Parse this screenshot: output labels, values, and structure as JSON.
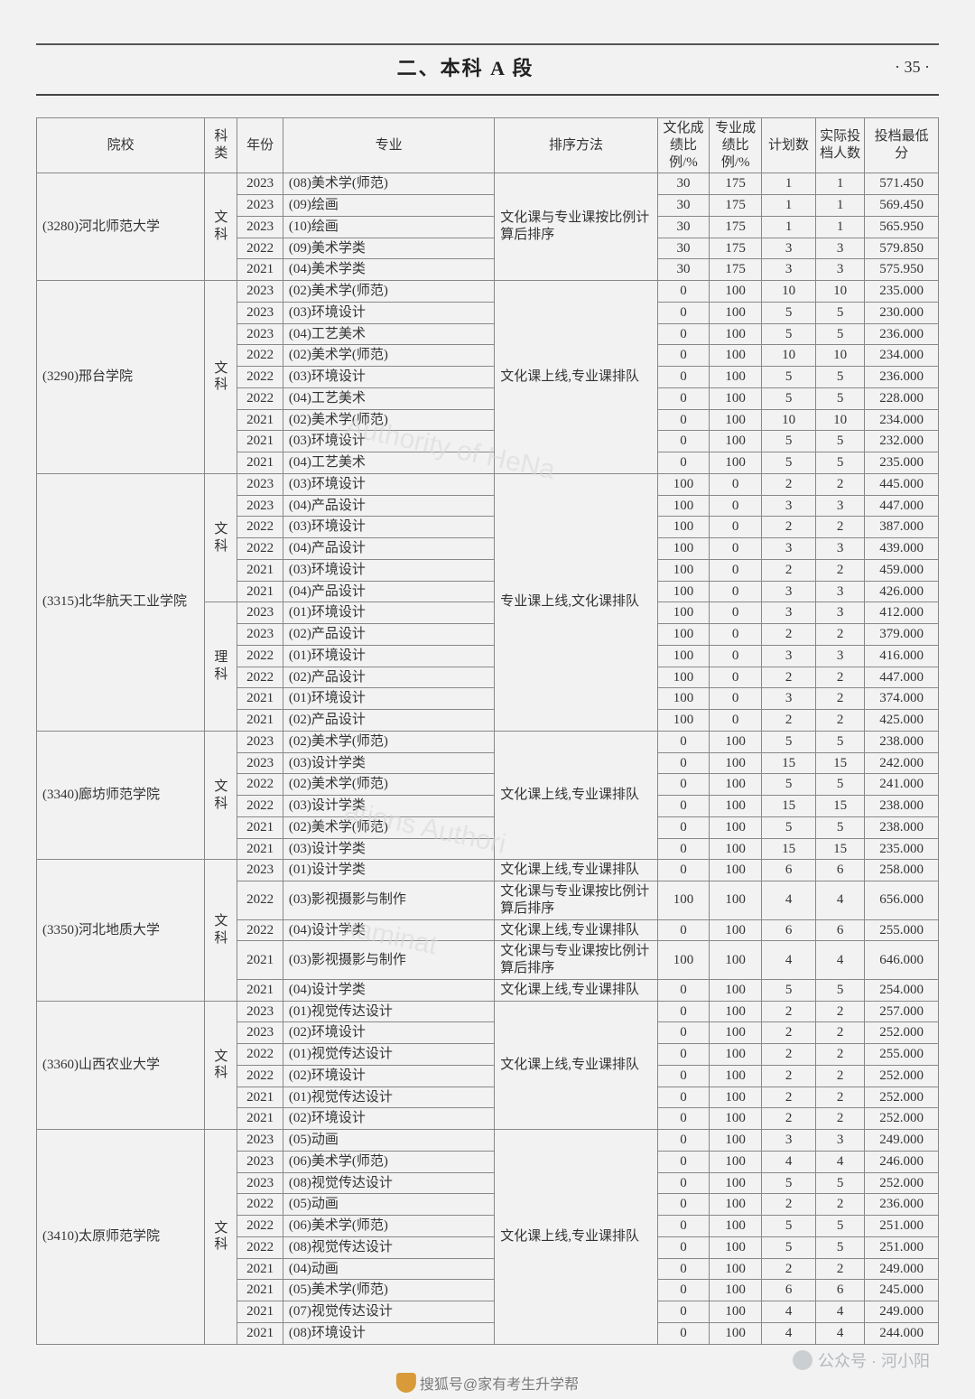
{
  "page": {
    "chapter": "二、本科 A 段",
    "number": "· 35 ·"
  },
  "headers": {
    "school": "院校",
    "subject": "科类",
    "year": "年份",
    "major": "专业",
    "sort": "排序方法",
    "culture": "文化成绩比例/%",
    "prof": "专业成绩比例/%",
    "plan": "计划数",
    "actual": "实际投档人数",
    "score": "投档最低分"
  },
  "watermarks": {
    "wm1": "Authority of HeNa",
    "wm2": "ations Authori",
    "wm3": "xaminat"
  },
  "footer": {
    "channel": "公众号 · 河小阳",
    "sohu": "搜狐号@家有考生升学帮"
  },
  "schools": [
    {
      "name": "(3280)河北师范大学",
      "blocks": [
        {
          "subject": "文科",
          "sort": "文化课与专业课按比例计算后排序",
          "rows": [
            {
              "year": "2023",
              "major": "(08)美术学(师范)",
              "c": "30",
              "p": "175",
              "plan": "1",
              "act": "1",
              "score": "571.450"
            },
            {
              "year": "2023",
              "major": "(09)绘画",
              "c": "30",
              "p": "175",
              "plan": "1",
              "act": "1",
              "score": "569.450"
            },
            {
              "year": "2023",
              "major": "(10)绘画",
              "c": "30",
              "p": "175",
              "plan": "1",
              "act": "1",
              "score": "565.950"
            },
            {
              "year": "2022",
              "major": "(09)美术学类",
              "c": "30",
              "p": "175",
              "plan": "3",
              "act": "3",
              "score": "579.850"
            },
            {
              "year": "2021",
              "major": "(04)美术学类",
              "c": "30",
              "p": "175",
              "plan": "3",
              "act": "3",
              "score": "575.950"
            }
          ]
        }
      ]
    },
    {
      "name": "(3290)邢台学院",
      "blocks": [
        {
          "subject": "文科",
          "sort": "文化课上线,专业课排队",
          "rows": [
            {
              "year": "2023",
              "major": "(02)美术学(师范)",
              "c": "0",
              "p": "100",
              "plan": "10",
              "act": "10",
              "score": "235.000"
            },
            {
              "year": "2023",
              "major": "(03)环境设计",
              "c": "0",
              "p": "100",
              "plan": "5",
              "act": "5",
              "score": "230.000"
            },
            {
              "year": "2023",
              "major": "(04)工艺美术",
              "c": "0",
              "p": "100",
              "plan": "5",
              "act": "5",
              "score": "236.000"
            },
            {
              "year": "2022",
              "major": "(02)美术学(师范)",
              "c": "0",
              "p": "100",
              "plan": "10",
              "act": "10",
              "score": "234.000"
            },
            {
              "year": "2022",
              "major": "(03)环境设计",
              "c": "0",
              "p": "100",
              "plan": "5",
              "act": "5",
              "score": "236.000"
            },
            {
              "year": "2022",
              "major": "(04)工艺美术",
              "c": "0",
              "p": "100",
              "plan": "5",
              "act": "5",
              "score": "228.000"
            },
            {
              "year": "2021",
              "major": "(02)美术学(师范)",
              "c": "0",
              "p": "100",
              "plan": "10",
              "act": "10",
              "score": "234.000"
            },
            {
              "year": "2021",
              "major": "(03)环境设计",
              "c": "0",
              "p": "100",
              "plan": "5",
              "act": "5",
              "score": "232.000"
            },
            {
              "year": "2021",
              "major": "(04)工艺美术",
              "c": "0",
              "p": "100",
              "plan": "5",
              "act": "5",
              "score": "235.000"
            }
          ]
        }
      ]
    },
    {
      "name": "(3315)北华航天工业学院",
      "blocks": [
        {
          "subject": "文科",
          "sort": "专业课上线,文化课排队",
          "rows": [
            {
              "year": "2023",
              "major": "(03)环境设计",
              "c": "100",
              "p": "0",
              "plan": "2",
              "act": "2",
              "score": "445.000"
            },
            {
              "year": "2023",
              "major": "(04)产品设计",
              "c": "100",
              "p": "0",
              "plan": "3",
              "act": "3",
              "score": "447.000"
            },
            {
              "year": "2022",
              "major": "(03)环境设计",
              "c": "100",
              "p": "0",
              "plan": "2",
              "act": "2",
              "score": "387.000"
            },
            {
              "year": "2022",
              "major": "(04)产品设计",
              "c": "100",
              "p": "0",
              "plan": "3",
              "act": "3",
              "score": "439.000"
            },
            {
              "year": "2021",
              "major": "(03)环境设计",
              "c": "100",
              "p": "0",
              "plan": "2",
              "act": "2",
              "score": "459.000"
            },
            {
              "year": "2021",
              "major": "(04)产品设计",
              "c": "100",
              "p": "0",
              "plan": "3",
              "act": "3",
              "score": "426.000"
            }
          ]
        },
        {
          "subject": "理科",
          "sort": "",
          "rows": [
            {
              "year": "2023",
              "major": "(01)环境设计",
              "c": "100",
              "p": "0",
              "plan": "3",
              "act": "3",
              "score": "412.000"
            },
            {
              "year": "2023",
              "major": "(02)产品设计",
              "c": "100",
              "p": "0",
              "plan": "2",
              "act": "2",
              "score": "379.000"
            },
            {
              "year": "2022",
              "major": "(01)环境设计",
              "c": "100",
              "p": "0",
              "plan": "3",
              "act": "3",
              "score": "416.000"
            },
            {
              "year": "2022",
              "major": "(02)产品设计",
              "c": "100",
              "p": "0",
              "plan": "2",
              "act": "2",
              "score": "447.000"
            },
            {
              "year": "2021",
              "major": "(01)环境设计",
              "c": "100",
              "p": "0",
              "plan": "3",
              "act": "2",
              "score": "374.000"
            },
            {
              "year": "2021",
              "major": "(02)产品设计",
              "c": "100",
              "p": "0",
              "plan": "2",
              "act": "2",
              "score": "425.000"
            }
          ]
        }
      ]
    },
    {
      "name": "(3340)廊坊师范学院",
      "blocks": [
        {
          "subject": "文科",
          "sort": "文化课上线,专业课排队",
          "rows": [
            {
              "year": "2023",
              "major": "(02)美术学(师范)",
              "c": "0",
              "p": "100",
              "plan": "5",
              "act": "5",
              "score": "238.000"
            },
            {
              "year": "2023",
              "major": "(03)设计学类",
              "c": "0",
              "p": "100",
              "plan": "15",
              "act": "15",
              "score": "242.000"
            },
            {
              "year": "2022",
              "major": "(02)美术学(师范)",
              "c": "0",
              "p": "100",
              "plan": "5",
              "act": "5",
              "score": "241.000"
            },
            {
              "year": "2022",
              "major": "(03)设计学类",
              "c": "0",
              "p": "100",
              "plan": "15",
              "act": "15",
              "score": "238.000"
            },
            {
              "year": "2021",
              "major": "(02)美术学(师范)",
              "c": "0",
              "p": "100",
              "plan": "5",
              "act": "5",
              "score": "238.000"
            },
            {
              "year": "2021",
              "major": "(03)设计学类",
              "c": "0",
              "p": "100",
              "plan": "15",
              "act": "15",
              "score": "235.000"
            }
          ]
        }
      ]
    },
    {
      "name": "(3350)河北地质大学",
      "blocks": [
        {
          "subject": "文科",
          "sort": "",
          "rows": [
            {
              "year": "2023",
              "major": "(01)设计学类",
              "sort": "文化课上线,专业课排队",
              "c": "0",
              "p": "100",
              "plan": "6",
              "act": "6",
              "score": "258.000"
            },
            {
              "year": "2022",
              "major": "(03)影视摄影与制作",
              "sort": "文化课与专业课按比例计算后排序",
              "c": "100",
              "p": "100",
              "plan": "4",
              "act": "4",
              "score": "656.000"
            },
            {
              "year": "2022",
              "major": "(04)设计学类",
              "sort": "文化课上线,专业课排队",
              "c": "0",
              "p": "100",
              "plan": "6",
              "act": "6",
              "score": "255.000"
            },
            {
              "year": "2021",
              "major": "(03)影视摄影与制作",
              "sort": "文化课与专业课按比例计算后排序",
              "c": "100",
              "p": "100",
              "plan": "4",
              "act": "4",
              "score": "646.000"
            },
            {
              "year": "2021",
              "major": "(04)设计学类",
              "sort": "文化课上线,专业课排队",
              "c": "0",
              "p": "100",
              "plan": "5",
              "act": "5",
              "score": "254.000"
            }
          ]
        }
      ]
    },
    {
      "name": "(3360)山西农业大学",
      "blocks": [
        {
          "subject": "文科",
          "sort": "文化课上线,专业课排队",
          "rows": [
            {
              "year": "2023",
              "major": "(01)视觉传达设计",
              "c": "0",
              "p": "100",
              "plan": "2",
              "act": "2",
              "score": "257.000"
            },
            {
              "year": "2023",
              "major": "(02)环境设计",
              "c": "0",
              "p": "100",
              "plan": "2",
              "act": "2",
              "score": "252.000"
            },
            {
              "year": "2022",
              "major": "(01)视觉传达设计",
              "c": "0",
              "p": "100",
              "plan": "2",
              "act": "2",
              "score": "255.000"
            },
            {
              "year": "2022",
              "major": "(02)环境设计",
              "c": "0",
              "p": "100",
              "plan": "2",
              "act": "2",
              "score": "252.000"
            },
            {
              "year": "2021",
              "major": "(01)视觉传达设计",
              "c": "0",
              "p": "100",
              "plan": "2",
              "act": "2",
              "score": "252.000"
            },
            {
              "year": "2021",
              "major": "(02)环境设计",
              "c": "0",
              "p": "100",
              "plan": "2",
              "act": "2",
              "score": "252.000"
            }
          ]
        }
      ]
    },
    {
      "name": "(3410)太原师范学院",
      "blocks": [
        {
          "subject": "文科",
          "sort": "文化课上线,专业课排队",
          "rows": [
            {
              "year": "2023",
              "major": "(05)动画",
              "c": "0",
              "p": "100",
              "plan": "3",
              "act": "3",
              "score": "249.000"
            },
            {
              "year": "2023",
              "major": "(06)美术学(师范)",
              "c": "0",
              "p": "100",
              "plan": "4",
              "act": "4",
              "score": "246.000"
            },
            {
              "year": "2023",
              "major": "(08)视觉传达设计",
              "c": "0",
              "p": "100",
              "plan": "5",
              "act": "5",
              "score": "252.000"
            },
            {
              "year": "2022",
              "major": "(05)动画",
              "c": "0",
              "p": "100",
              "plan": "2",
              "act": "2",
              "score": "236.000"
            },
            {
              "year": "2022",
              "major": "(06)美术学(师范)",
              "c": "0",
              "p": "100",
              "plan": "5",
              "act": "5",
              "score": "251.000"
            },
            {
              "year": "2022",
              "major": "(08)视觉传达设计",
              "c": "0",
              "p": "100",
              "plan": "5",
              "act": "5",
              "score": "251.000"
            },
            {
              "year": "2021",
              "major": "(04)动画",
              "c": "0",
              "p": "100",
              "plan": "2",
              "act": "2",
              "score": "249.000"
            },
            {
              "year": "2021",
              "major": "(05)美术学(师范)",
              "c": "0",
              "p": "100",
              "plan": "6",
              "act": "6",
              "score": "245.000"
            },
            {
              "year": "2021",
              "major": "(07)视觉传达设计",
              "c": "0",
              "p": "100",
              "plan": "4",
              "act": "4",
              "score": "249.000"
            },
            {
              "year": "2021",
              "major": "(08)环境设计",
              "c": "0",
              "p": "100",
              "plan": "4",
              "act": "4",
              "score": "244.000"
            }
          ]
        }
      ]
    }
  ]
}
